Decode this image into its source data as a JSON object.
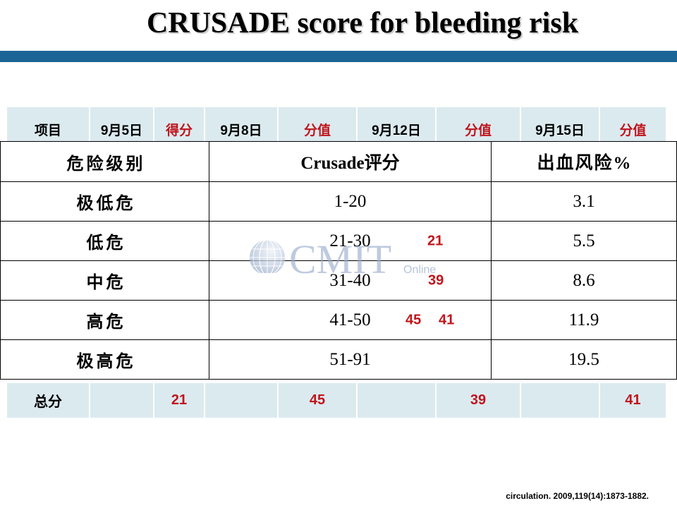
{
  "slide": {
    "title": "CRUSADE score for bleeding risk",
    "citation": "circulation. 2009,119(14):1873-1882."
  },
  "colors": {
    "accent_bar": "#1b6596",
    "table_band": "#dbeaef",
    "highlight_red": "#c0141c"
  },
  "score_header": {
    "cells": [
      "项目",
      "9月5日",
      "得分",
      "9月8日",
      "分值",
      "9月12日",
      "分值",
      "9月15日",
      "分值"
    ]
  },
  "risk_table": {
    "headers": [
      "危险级别",
      "Crusade评分",
      "出血风险%"
    ],
    "rows": [
      {
        "level": "极低危",
        "range": "1-20",
        "risk": "3.1",
        "marks": []
      },
      {
        "level": "低危",
        "range": "21-30",
        "risk": "5.5",
        "marks": [
          "21"
        ]
      },
      {
        "level": "中危",
        "range": "31-40",
        "risk": "8.6",
        "marks": [
          "39"
        ]
      },
      {
        "level": "高危",
        "range": "41-50",
        "risk": "11.9",
        "marks": [
          "45",
          "41"
        ]
      },
      {
        "level": "极高危",
        "range": "51-91",
        "risk": "19.5",
        "marks": []
      }
    ]
  },
  "score_total": {
    "label": "总分",
    "scores": [
      "21",
      "45",
      "39",
      "41"
    ]
  },
  "watermark": {
    "brand": "CMIT",
    "suffix": "Online",
    "logo_icon": "globe-icon"
  }
}
